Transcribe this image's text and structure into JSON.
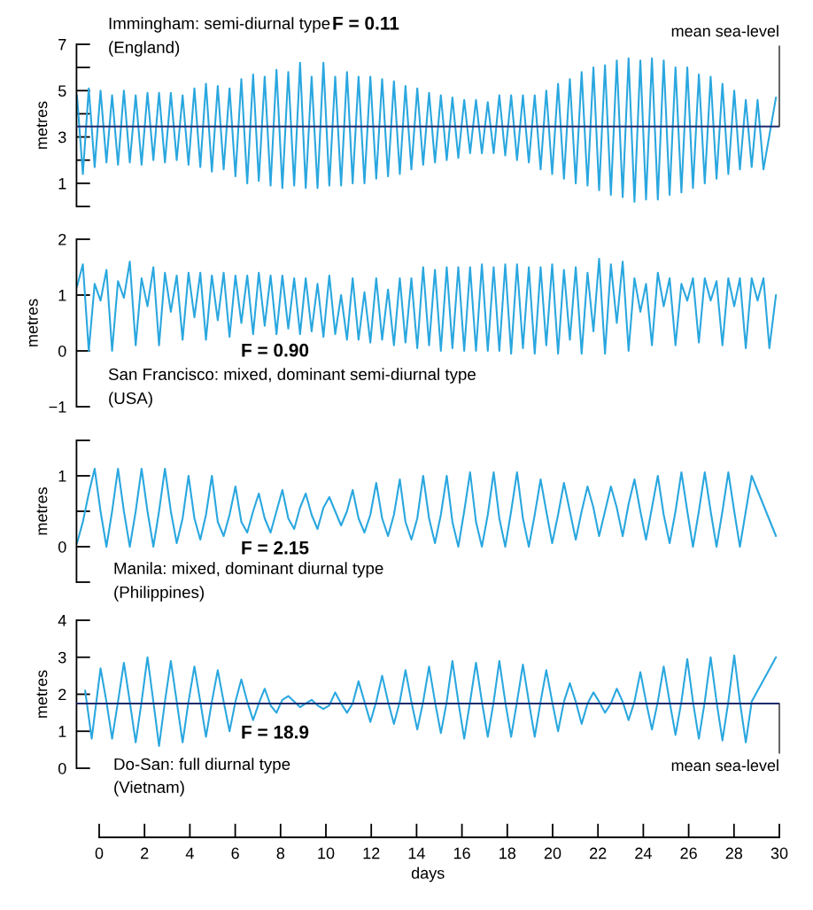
{
  "chart_data": [
    {
      "type": "line",
      "ylabel": "metres",
      "xlim": [
        -1.0,
        30.0
      ],
      "ylim": [
        0,
        7
      ],
      "tick_labels": "y",
      "yticks": [
        {
          "value": 0,
          "label": null
        },
        1,
        {
          "value": 2,
          "label": null
        },
        3,
        {
          "value": 4,
          "label": null
        },
        5,
        {
          "value": 6,
          "label": null
        },
        7
      ],
      "annotations": [
        "Immingham: semi-diurnal type",
        "F = 0.11",
        "(England)"
      ],
      "ref_lines": [
        {
          "axis": "y",
          "value": 3.45,
          "label": "mean sea-level",
          "color": "#1f2b6e"
        }
      ],
      "series": [
        {
          "color": "#2aa7df",
          "x": [
            -0.98,
            -0.72,
            -0.46,
            -0.2,
            0.06,
            0.32,
            0.57,
            0.83,
            1.09,
            1.35,
            1.61,
            1.87,
            2.13,
            2.39,
            2.64,
            2.9,
            3.16,
            3.42,
            3.68,
            3.94,
            4.2,
            4.46,
            4.71,
            4.97,
            5.23,
            5.49,
            5.75,
            6.01,
            6.27,
            6.53,
            6.79,
            7.04,
            7.3,
            7.56,
            7.82,
            8.08,
            8.34,
            8.6,
            8.86,
            9.11,
            9.37,
            9.63,
            9.89,
            10.15,
            10.41,
            10.67,
            10.93,
            11.18,
            11.44,
            11.7,
            11.96,
            12.22,
            12.48,
            12.74,
            13.0,
            13.26,
            13.51,
            13.77,
            14.03,
            14.29,
            14.55,
            14.81,
            15.07,
            15.33,
            15.58,
            15.84,
            16.1,
            16.36,
            16.62,
            16.88,
            17.14,
            17.4,
            17.65,
            17.91,
            18.17,
            18.43,
            18.69,
            18.95,
            19.21,
            19.47,
            19.72,
            19.98,
            20.24,
            20.5,
            20.76,
            21.02,
            21.28,
            21.54,
            21.8,
            22.05,
            22.31,
            22.57,
            22.83,
            23.09,
            23.35,
            23.61,
            23.87,
            24.12,
            24.38,
            24.64,
            24.9,
            25.16,
            25.42,
            25.68,
            25.94,
            26.19,
            26.45,
            26.71,
            26.97,
            27.23,
            27.49,
            27.75,
            28.01,
            28.26,
            28.52,
            28.78,
            29.04,
            29.3,
            29.85
          ],
          "values": [
            4.8,
            1.4,
            5.1,
            1.7,
            5.0,
            1.9,
            4.8,
            1.8,
            5.0,
            1.9,
            4.8,
            1.8,
            4.9,
            2.0,
            4.9,
            1.9,
            4.9,
            2.0,
            4.8,
            1.8,
            5.1,
            1.7,
            5.3,
            1.5,
            5.2,
            1.6,
            5.1,
            1.3,
            5.5,
            1.0,
            5.7,
            1.1,
            5.6,
            0.9,
            5.9,
            0.8,
            5.8,
            0.9,
            6.2,
            0.8,
            5.6,
            0.8,
            6.2,
            0.9,
            5.6,
            0.9,
            5.8,
            1.0,
            5.6,
            1.0,
            5.6,
            1.2,
            5.5,
            1.3,
            5.4,
            1.4,
            5.2,
            1.6,
            5.1,
            1.8,
            4.9,
            1.9,
            4.8,
            2.0,
            4.7,
            2.1,
            4.6,
            2.3,
            4.6,
            2.3,
            4.5,
            2.3,
            4.8,
            2.2,
            4.8,
            2.0,
            4.8,
            1.9,
            4.8,
            1.6,
            5.0,
            1.4,
            5.3,
            1.2,
            5.5,
            1.0,
            5.8,
            0.9,
            6.0,
            0.7,
            6.1,
            0.5,
            6.3,
            0.4,
            6.4,
            0.2,
            6.3,
            0.3,
            6.4,
            0.3,
            6.3,
            0.5,
            6.0,
            0.6,
            6.0,
            0.8,
            5.7,
            1.0,
            5.6,
            1.2,
            5.3,
            1.4,
            5.0,
            1.6,
            4.6,
            1.7,
            4.6,
            1.6,
            4.7
          ]
        }
      ]
    },
    {
      "type": "line",
      "ylabel": "metres",
      "xlim": [
        -1.0,
        30.0
      ],
      "ylim": [
        -1,
        2
      ],
      "tick_labels": "y",
      "yticks": [
        {
          "value": -1,
          "label": "−1"
        },
        0,
        1,
        2
      ],
      "annotations": [
        "San Francisco: mixed, dominant semi-diurnal type",
        "F = 0.90",
        "(USA)"
      ],
      "series": [
        {
          "color": "#2aa7df",
          "x": [
            -0.98,
            -0.72,
            -0.46,
            -0.2,
            0.06,
            0.32,
            0.57,
            0.83,
            1.09,
            1.35,
            1.61,
            1.87,
            2.13,
            2.39,
            2.64,
            2.9,
            3.16,
            3.42,
            3.68,
            3.94,
            4.2,
            4.46,
            4.71,
            4.97,
            5.23,
            5.49,
            5.75,
            6.01,
            6.27,
            6.53,
            6.79,
            7.04,
            7.3,
            7.56,
            7.82,
            8.08,
            8.34,
            8.6,
            8.86,
            9.11,
            9.37,
            9.63,
            9.89,
            10.15,
            10.41,
            10.67,
            10.93,
            11.18,
            11.44,
            11.7,
            11.96,
            12.22,
            12.48,
            12.74,
            13.0,
            13.26,
            13.51,
            13.77,
            14.03,
            14.29,
            14.55,
            14.81,
            15.07,
            15.33,
            15.58,
            15.84,
            16.1,
            16.36,
            16.62,
            16.88,
            17.14,
            17.4,
            17.65,
            17.91,
            18.17,
            18.43,
            18.69,
            18.95,
            19.21,
            19.47,
            19.72,
            19.98,
            20.24,
            20.5,
            20.76,
            21.02,
            21.28,
            21.54,
            21.8,
            22.05,
            22.31,
            22.57,
            22.83,
            23.09,
            23.35,
            23.61,
            23.87,
            24.12,
            24.38,
            24.64,
            24.9,
            25.16,
            25.42,
            25.68,
            25.94,
            26.19,
            26.45,
            26.71,
            26.97,
            27.23,
            27.49,
            27.75,
            28.01,
            28.26,
            28.52,
            28.78,
            29.04,
            29.3,
            29.56,
            29.85
          ],
          "values": [
            1.15,
            1.55,
            0.0,
            1.2,
            0.9,
            1.45,
            0.0,
            1.25,
            0.95,
            1.6,
            0.1,
            1.3,
            0.8,
            1.5,
            0.1,
            1.4,
            0.7,
            1.35,
            0.2,
            1.4,
            0.6,
            1.4,
            0.2,
            1.35,
            0.55,
            1.4,
            0.25,
            1.35,
            0.5,
            1.35,
            0.3,
            1.4,
            0.45,
            1.35,
            0.3,
            1.35,
            0.4,
            1.3,
            0.3,
            1.3,
            0.35,
            1.2,
            0.25,
            1.35,
            0.3,
            1.0,
            0.2,
            1.3,
            0.2,
            1.05,
            0.15,
            1.3,
            0.2,
            1.1,
            0.1,
            1.3,
            0.15,
            1.3,
            0.05,
            1.5,
            0.1,
            1.45,
            0.0,
            1.5,
            0.05,
            1.5,
            0.0,
            1.5,
            0.0,
            1.55,
            0.0,
            1.5,
            0.0,
            1.55,
            -0.05,
            1.55,
            0.05,
            1.5,
            -0.05,
            1.5,
            0.1,
            1.55,
            -0.05,
            1.45,
            0.2,
            1.5,
            -0.05,
            1.4,
            0.35,
            1.65,
            -0.05,
            1.55,
            0.5,
            1.6,
            0.0,
            1.3,
            0.7,
            1.2,
            0.1,
            1.4,
            0.8,
            1.3,
            0.1,
            1.2,
            0.9,
            1.3,
            0.15,
            1.3,
            0.9,
            1.25,
            0.1,
            1.3,
            0.8,
            1.3,
            0.05,
            1.3,
            0.9,
            1.3,
            0.05,
            1.0
          ]
        }
      ]
    },
    {
      "type": "line",
      "ylabel": "metres",
      "xlim": [
        -1.0,
        30.0
      ],
      "ylim": [
        -0.5,
        1.5
      ],
      "tick_labels": "y",
      "yticks": [
        {
          "value": -0.5,
          "label": null
        },
        0,
        {
          "value": 0.5,
          "label": null
        },
        1,
        {
          "value": 1.5,
          "label": null
        }
      ],
      "annotations": [
        "Manila: mixed, dominant diurnal type",
        "F = 2.15",
        "(Philippines)"
      ],
      "series": [
        {
          "color": "#2aa7df",
          "x": [
            -0.98,
            -0.72,
            -0.46,
            -0.2,
            0.06,
            0.32,
            0.57,
            0.83,
            1.09,
            1.35,
            1.61,
            1.87,
            2.13,
            2.39,
            2.64,
            2.9,
            3.16,
            3.42,
            3.68,
            3.94,
            4.2,
            4.46,
            4.71,
            4.97,
            5.23,
            5.49,
            5.75,
            6.01,
            6.27,
            6.53,
            6.79,
            7.04,
            7.3,
            7.56,
            7.82,
            8.08,
            8.34,
            8.6,
            8.86,
            9.11,
            9.37,
            9.63,
            9.89,
            10.15,
            10.41,
            10.67,
            10.93,
            11.18,
            11.44,
            11.7,
            11.96,
            12.22,
            12.48,
            12.74,
            13.0,
            13.26,
            13.51,
            13.77,
            14.03,
            14.29,
            14.55,
            14.81,
            15.07,
            15.33,
            15.58,
            15.84,
            16.1,
            16.36,
            16.62,
            16.88,
            17.14,
            17.4,
            17.65,
            17.91,
            18.17,
            18.43,
            18.69,
            18.95,
            19.21,
            19.47,
            19.72,
            19.98,
            20.24,
            20.5,
            20.76,
            21.02,
            21.28,
            21.54,
            21.8,
            22.05,
            22.31,
            22.57,
            22.83,
            23.09,
            23.35,
            23.61,
            23.87,
            24.12,
            24.38,
            24.64,
            24.9,
            25.16,
            25.42,
            25.68,
            25.94,
            26.19,
            26.45,
            26.71,
            26.97,
            27.23,
            27.49,
            27.75,
            28.01,
            28.26,
            28.52,
            28.78,
            29.85
          ],
          "values": [
            0.05,
            0.35,
            0.75,
            1.1,
            0.5,
            0.0,
            0.5,
            1.1,
            0.5,
            0.0,
            0.5,
            1.1,
            0.5,
            0.0,
            0.5,
            1.1,
            0.5,
            0.05,
            0.4,
            1.0,
            0.4,
            0.1,
            0.45,
            1.0,
            0.35,
            0.15,
            0.45,
            0.85,
            0.35,
            0.2,
            0.5,
            0.75,
            0.4,
            0.2,
            0.5,
            0.8,
            0.4,
            0.25,
            0.55,
            0.75,
            0.45,
            0.25,
            0.55,
            0.7,
            0.5,
            0.3,
            0.5,
            0.8,
            0.4,
            0.2,
            0.45,
            0.9,
            0.4,
            0.15,
            0.45,
            0.95,
            0.35,
            0.1,
            0.4,
            1.0,
            0.4,
            0.05,
            0.45,
            1.0,
            0.35,
            0.0,
            0.5,
            1.05,
            0.35,
            0.0,
            0.45,
            1.05,
            0.4,
            0.0,
            0.5,
            1.05,
            0.4,
            0.0,
            0.45,
            0.95,
            0.5,
            0.05,
            0.45,
            0.9,
            0.5,
            0.1,
            0.5,
            0.85,
            0.55,
            0.15,
            0.5,
            0.85,
            0.55,
            0.15,
            0.6,
            0.95,
            0.5,
            0.1,
            0.55,
            1.0,
            0.45,
            0.05,
            0.5,
            1.05,
            0.5,
            0.0,
            0.5,
            1.05,
            0.5,
            0.0,
            0.5,
            1.05,
            0.5,
            0.0,
            0.5,
            1.0,
            0.15
          ]
        }
      ]
    },
    {
      "type": "line",
      "ylabel": "metres",
      "xlabel": "days",
      "xlim": [
        -1.0,
        30.0
      ],
      "ylim": [
        0,
        4
      ],
      "xticks": [
        0,
        2,
        4,
        6,
        8,
        10,
        12,
        14,
        16,
        18,
        20,
        22,
        24,
        26,
        28,
        30
      ],
      "yticks": [
        0,
        1,
        2,
        3,
        4
      ],
      "annotations": [
        "Do-San: full diurnal type",
        "F = 18.9",
        "(Vietnam)"
      ],
      "ref_lines": [
        {
          "axis": "y",
          "value": 1.75,
          "label": "mean sea-level",
          "color": "#1f2b6e"
        }
      ],
      "series": [
        {
          "color": "#2aa7df",
          "x": [
            -0.62,
            -0.33,
            0.06,
            0.32,
            0.57,
            0.83,
            1.09,
            1.35,
            1.61,
            1.87,
            2.13,
            2.39,
            2.64,
            2.9,
            3.16,
            3.42,
            3.68,
            3.94,
            4.2,
            4.46,
            4.71,
            4.97,
            5.23,
            5.49,
            5.75,
            6.01,
            6.27,
            6.53,
            6.79,
            7.04,
            7.3,
            7.56,
            7.82,
            8.08,
            8.34,
            8.6,
            8.86,
            9.11,
            9.37,
            9.63,
            9.89,
            10.15,
            10.41,
            10.67,
            10.93,
            11.18,
            11.44,
            11.7,
            11.96,
            12.22,
            12.48,
            12.74,
            13.0,
            13.26,
            13.51,
            13.77,
            14.03,
            14.29,
            14.55,
            14.81,
            15.07,
            15.33,
            15.58,
            15.84,
            16.1,
            16.36,
            16.62,
            16.88,
            17.14,
            17.4,
            17.65,
            17.91,
            18.17,
            18.43,
            18.69,
            18.95,
            19.21,
            19.47,
            19.72,
            19.98,
            20.24,
            20.5,
            20.76,
            21.02,
            21.28,
            21.54,
            21.8,
            22.05,
            22.31,
            22.57,
            22.83,
            23.09,
            23.35,
            23.61,
            23.87,
            24.12,
            24.38,
            24.64,
            24.9,
            25.16,
            25.42,
            25.68,
            25.94,
            26.19,
            26.45,
            26.71,
            26.97,
            27.23,
            27.49,
            27.75,
            28.01,
            28.26,
            28.52,
            28.78,
            29.85
          ],
          "values": [
            2.1,
            0.8,
            2.7,
            1.8,
            0.8,
            1.8,
            2.85,
            1.8,
            0.7,
            1.8,
            3.0,
            1.8,
            0.6,
            1.8,
            2.9,
            1.8,
            0.7,
            1.8,
            2.75,
            1.8,
            0.85,
            1.8,
            2.65,
            1.8,
            1.0,
            1.8,
            2.4,
            1.8,
            1.3,
            1.75,
            2.15,
            1.7,
            1.5,
            1.85,
            1.95,
            1.8,
            1.65,
            1.75,
            1.85,
            1.7,
            1.6,
            1.7,
            2.05,
            1.75,
            1.5,
            1.75,
            2.35,
            1.8,
            1.25,
            1.8,
            2.5,
            1.8,
            1.2,
            1.8,
            2.65,
            1.8,
            1.05,
            1.8,
            2.75,
            1.8,
            0.95,
            1.8,
            2.9,
            1.8,
            0.8,
            1.8,
            2.85,
            1.8,
            0.85,
            1.8,
            2.9,
            1.8,
            0.85,
            1.8,
            2.8,
            1.8,
            0.85,
            1.8,
            2.65,
            1.8,
            1.0,
            1.8,
            2.3,
            1.8,
            1.2,
            1.75,
            2.05,
            1.8,
            1.5,
            1.75,
            2.15,
            1.8,
            1.3,
            1.8,
            2.6,
            1.8,
            1.05,
            1.8,
            2.75,
            1.8,
            0.9,
            1.8,
            2.95,
            1.8,
            0.8,
            1.8,
            3.0,
            1.8,
            0.75,
            1.8,
            3.05,
            1.8,
            0.7,
            1.8,
            3.0
          ]
        }
      ]
    }
  ]
}
